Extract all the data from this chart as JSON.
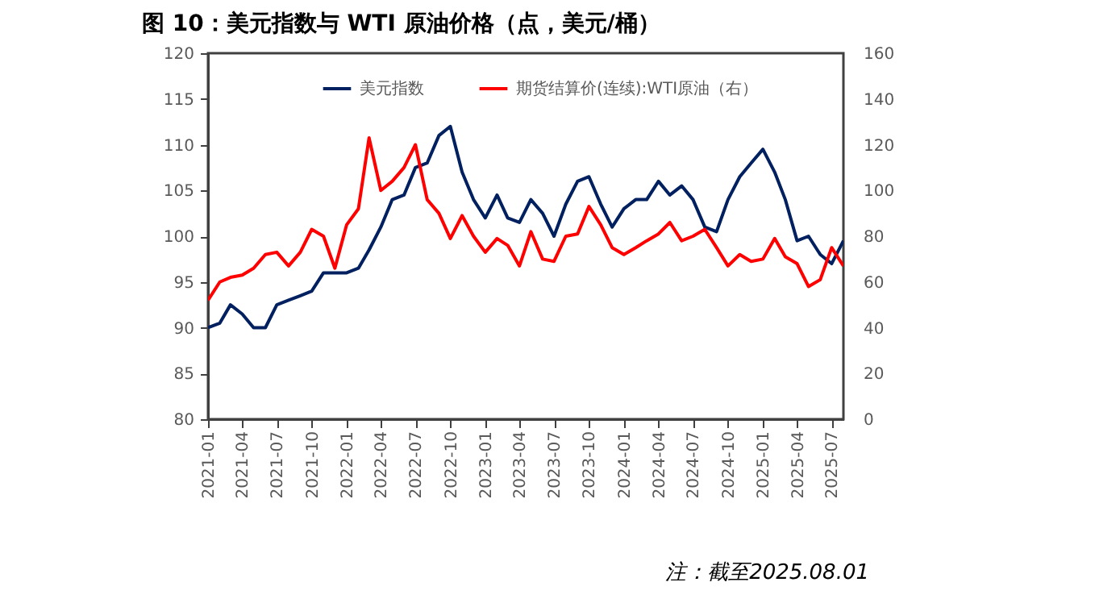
{
  "chart_data": {
    "type": "line",
    "title": "图 10：美元指数与 WTI 原油价格（点，美元/桶）",
    "x": [
      "2021-01",
      "2021-02",
      "2021-03",
      "2021-04",
      "2021-05",
      "2021-06",
      "2021-07",
      "2021-08",
      "2021-09",
      "2021-10",
      "2021-11",
      "2021-12",
      "2022-01",
      "2022-02",
      "2022-03",
      "2022-04",
      "2022-05",
      "2022-06",
      "2022-07",
      "2022-08",
      "2022-09",
      "2022-10",
      "2022-11",
      "2022-12",
      "2023-01",
      "2023-02",
      "2023-03",
      "2023-04",
      "2023-05",
      "2023-06",
      "2023-07",
      "2023-08",
      "2023-09",
      "2023-10",
      "2023-11",
      "2023-12",
      "2024-01",
      "2024-02",
      "2024-03",
      "2024-04",
      "2024-05",
      "2024-06",
      "2024-07",
      "2024-08",
      "2024-09",
      "2024-10",
      "2024-11",
      "2024-12",
      "2025-01",
      "2025-02",
      "2025-03",
      "2025-04",
      "2025-05",
      "2025-06",
      "2025-07",
      "2025-08"
    ],
    "series": [
      {
        "name": "美元指数",
        "color": "#002060",
        "values": [
          90,
          90.5,
          92.5,
          91.5,
          90,
          90,
          92.5,
          93,
          93.5,
          94,
          96,
          96,
          96,
          96.5,
          98.5,
          101,
          104,
          104.5,
          107.5,
          108,
          111,
          112,
          107,
          104,
          102,
          104.5,
          102,
          101.5,
          104,
          102.5,
          100,
          103.5,
          106,
          106.5,
          103.5,
          101,
          103,
          104,
          104,
          106,
          104.5,
          105.5,
          104,
          101,
          100.5,
          104,
          106.5,
          108,
          109.5,
          107,
          104,
          99.5,
          100,
          98,
          97,
          99.5
        ]
      },
      {
        "name": "期货结算价(连续):WTI原油（右）",
        "color": "#ff0000",
        "axis": "y2",
        "values": [
          52,
          60,
          62,
          63,
          66,
          72,
          73,
          67,
          73,
          83,
          80,
          66,
          85,
          92,
          123,
          100,
          104,
          110,
          120,
          96,
          90,
          79,
          89,
          80,
          73,
          79,
          76,
          67,
          82,
          70,
          69,
          80,
          81,
          93,
          85,
          75,
          72,
          75,
          78,
          81,
          86,
          78,
          80,
          83,
          75,
          67,
          72,
          69,
          70,
          79,
          71,
          68,
          58,
          61,
          75,
          67
        ]
      }
    ],
    "xlim": [
      "2021-01",
      "2025-08"
    ],
    "xticks": [
      "2021-01",
      "2021-04",
      "2021-07",
      "2021-10",
      "2022-01",
      "2022-04",
      "2022-07",
      "2022-10",
      "2023-01",
      "2023-04",
      "2023-07",
      "2023-10",
      "2024-01",
      "2024-04",
      "2024-07",
      "2024-10",
      "2025-01",
      "2025-04",
      "2025-07"
    ],
    "ylim": [
      80,
      120
    ],
    "yticks": [
      80,
      85,
      90,
      95,
      100,
      105,
      110,
      115,
      120
    ],
    "y2lim": [
      0,
      160
    ],
    "y2ticks": [
      0,
      20,
      40,
      60,
      80,
      100,
      120,
      140,
      160
    ],
    "legend": "top",
    "annotations": [
      "注：截至2025.08.01"
    ]
  }
}
